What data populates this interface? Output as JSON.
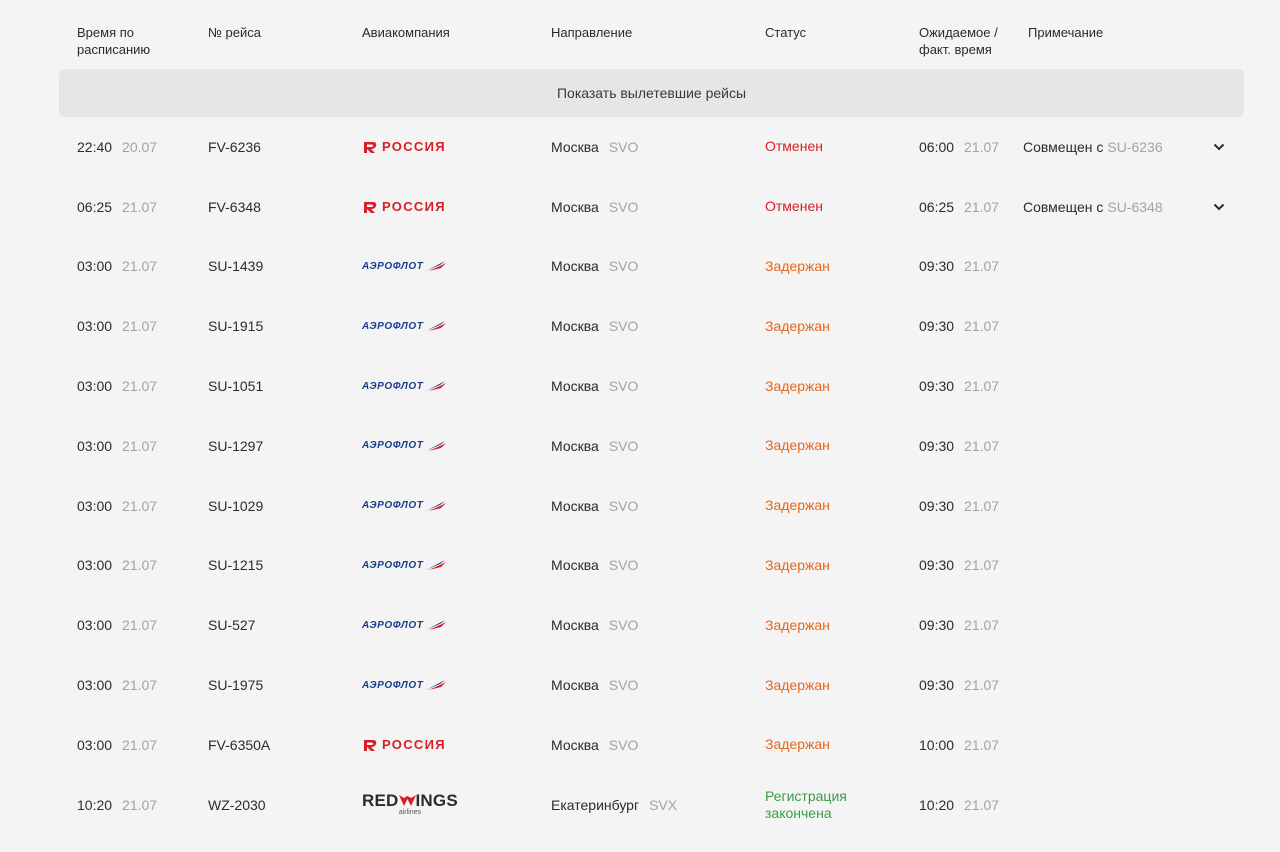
{
  "columns": {
    "scheduled": "Время по расписанию",
    "flight": "№ рейса",
    "airline": "Авиакомпания",
    "destination": "Направление",
    "status": "Статус",
    "expected": "Ожидаемое / факт. время",
    "note": "Примечание"
  },
  "show_departed_label": "Показать вылетевшие рейсы",
  "logos": {
    "rossiya": "РОССИЯ",
    "aeroflot": "АЭРОФЛОТ",
    "redwings": {
      "red": "RED",
      "rest": "INGS",
      "sub": "airlines"
    }
  },
  "colors": {
    "cancelled": "#d61f26",
    "delayed": "#e8661c",
    "checkin_closed": "#3d9b46"
  },
  "flights": [
    {
      "time": "22:40",
      "date": "20.07",
      "flight": "FV-6236",
      "airline": "rossiya",
      "city": "Москва",
      "code": "SVO",
      "status": "Отменен",
      "status_type": "cancel",
      "exp_time": "06:00",
      "exp_date": "21.07",
      "note_prefix": "Совмещен с",
      "note_flight": "SU-6236",
      "expandable": true
    },
    {
      "time": "06:25",
      "date": "21.07",
      "flight": "FV-6348",
      "airline": "rossiya",
      "city": "Москва",
      "code": "SVO",
      "status": "Отменен",
      "status_type": "cancel",
      "exp_time": "06:25",
      "exp_date": "21.07",
      "note_prefix": "Совмещен с",
      "note_flight": "SU-6348",
      "expandable": true
    },
    {
      "time": "03:00",
      "date": "21.07",
      "flight": "SU-1439",
      "airline": "aeroflot",
      "city": "Москва",
      "code": "SVO",
      "status": "Задержан",
      "status_type": "delay",
      "exp_time": "09:30",
      "exp_date": "21.07"
    },
    {
      "time": "03:00",
      "date": "21.07",
      "flight": "SU-1915",
      "airline": "aeroflot",
      "city": "Москва",
      "code": "SVO",
      "status": "Задержан",
      "status_type": "delay",
      "exp_time": "09:30",
      "exp_date": "21.07"
    },
    {
      "time": "03:00",
      "date": "21.07",
      "flight": "SU-1051",
      "airline": "aeroflot",
      "city": "Москва",
      "code": "SVO",
      "status": "Задержан",
      "status_type": "delay",
      "exp_time": "09:30",
      "exp_date": "21.07"
    },
    {
      "time": "03:00",
      "date": "21.07",
      "flight": "SU-1297",
      "airline": "aeroflot",
      "city": "Москва",
      "code": "SVO",
      "status": "Задержан",
      "status_type": "delay",
      "exp_time": "09:30",
      "exp_date": "21.07"
    },
    {
      "time": "03:00",
      "date": "21.07",
      "flight": "SU-1029",
      "airline": "aeroflot",
      "city": "Москва",
      "code": "SVO",
      "status": "Задержан",
      "status_type": "delay",
      "exp_time": "09:30",
      "exp_date": "21.07"
    },
    {
      "time": "03:00",
      "date": "21.07",
      "flight": "SU-1215",
      "airline": "aeroflot",
      "city": "Москва",
      "code": "SVO",
      "status": "Задержан",
      "status_type": "delay",
      "exp_time": "09:30",
      "exp_date": "21.07"
    },
    {
      "time": "03:00",
      "date": "21.07",
      "flight": "SU-527",
      "airline": "aeroflot",
      "city": "Москва",
      "code": "SVO",
      "status": "Задержан",
      "status_type": "delay",
      "exp_time": "09:30",
      "exp_date": "21.07"
    },
    {
      "time": "03:00",
      "date": "21.07",
      "flight": "SU-1975",
      "airline": "aeroflot",
      "city": "Москва",
      "code": "SVO",
      "status": "Задержан",
      "status_type": "delay",
      "exp_time": "09:30",
      "exp_date": "21.07"
    },
    {
      "time": "03:00",
      "date": "21.07",
      "flight": "FV-6350A",
      "airline": "rossiya",
      "city": "Москва",
      "code": "SVO",
      "status": "Задержан",
      "status_type": "delay",
      "exp_time": "10:00",
      "exp_date": "21.07"
    },
    {
      "time": "10:20",
      "date": "21.07",
      "flight": "WZ-2030",
      "airline": "redwings",
      "city": "Екатеринбург",
      "code": "SVX",
      "status": "Регистрация закончена",
      "status_type": "done",
      "exp_time": "10:20",
      "exp_date": "21.07"
    }
  ]
}
